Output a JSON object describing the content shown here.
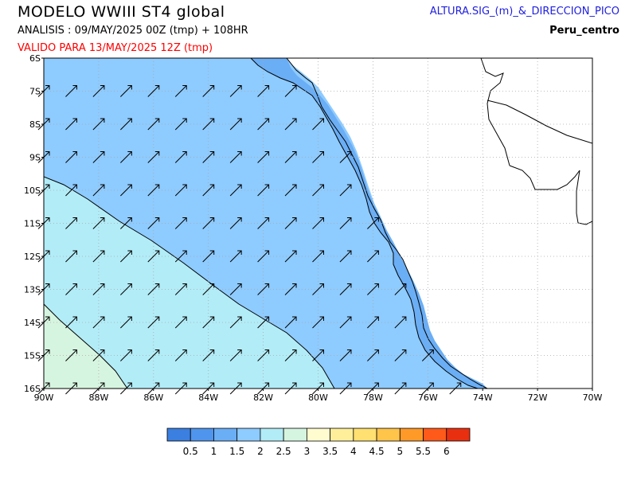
{
  "header": {
    "title": "MODELO  WWIII  ST4  global",
    "analysis": "ANALISIS : 09/MAY/2025 00Z  (tmp) + 108HR",
    "valid": "VALIDO PARA  13/MAY/2025 12Z  (tmp)",
    "variable": "ALTURA.SIG_(m)_&_DIRECCION_PICO",
    "region": "Peru_centro"
  },
  "map": {
    "lat_labels": [
      "6S",
      "7S",
      "8S",
      "9S",
      "10S",
      "11S",
      "12S",
      "13S",
      "14S",
      "15S",
      "16S"
    ],
    "lon_labels": [
      "90W",
      "88W",
      "86W",
      "84W",
      "82W",
      "80W",
      "78W",
      "76W",
      "74W",
      "72W",
      "70W"
    ],
    "lat_range": [
      -16,
      -6
    ],
    "lon_range": [
      -90,
      -70
    ],
    "peak_direction": "northeast",
    "colors": {
      "land": "#ffffff",
      "sea_1_5_2": "#8ecbff",
      "sea_1_1_5": "#6aaef5",
      "sea_2_2_5": "#b2ecf7",
      "sea_2_5_3": "#d6f5e0",
      "grid": "#aaaaaa"
    }
  },
  "colorbar": {
    "labels": [
      "0.5",
      "1",
      "1.5",
      "2",
      "2.5",
      "3",
      "3.5",
      "4",
      "4.5",
      "5",
      "5.5",
      "6"
    ],
    "colors": [
      "#3b7fe0",
      "#4f95ee",
      "#6aaef5",
      "#8ecbff",
      "#b2ecf7",
      "#d6f5e0",
      "#fffdd0",
      "#ffef9a",
      "#ffe070",
      "#ffc44a",
      "#ff9a28",
      "#ff5a1a",
      "#e83010"
    ]
  }
}
